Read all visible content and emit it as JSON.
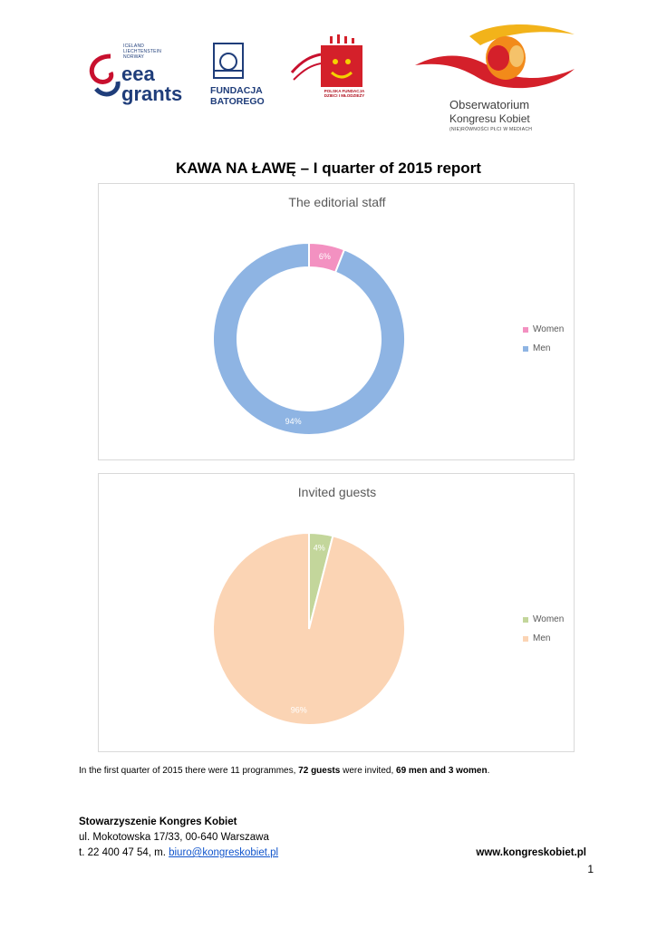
{
  "header": {
    "eea": {
      "lines": [
        "ICELAND",
        "LIECHTENSTEIN",
        "NORWAY"
      ],
      "word1": "eea",
      "word2": "grants"
    },
    "batory": {
      "line1": "FUNDACJA",
      "line2": "BATOREGO"
    },
    "pfdn": {
      "line1": "POLSKA FUNDACJA",
      "line2": "DZIECI I MŁODZIEŻY"
    },
    "okk": {
      "line1": "Obserwatorium",
      "line2": "Kongresu Kobiet",
      "line3": "(NIE)RÓWNOŚCI PŁCI W MEDIACH"
    }
  },
  "title": "KAWA NA ŁAWĘ – I quarter of 2015 report",
  "chart_data": [
    {
      "type": "pie",
      "variant": "doughnut",
      "title": "The editorial staff",
      "categories": [
        "Women",
        "Men"
      ],
      "values": [
        6,
        94
      ],
      "labels": [
        "6%",
        "94%"
      ],
      "colors": [
        "#f391c1",
        "#8eb4e3"
      ],
      "legend": "right"
    },
    {
      "type": "pie",
      "title": "Invited guests",
      "categories": [
        "Women",
        "Men"
      ],
      "values": [
        4,
        96
      ],
      "labels": [
        "4%",
        "96%"
      ],
      "colors": [
        "#c3d69b",
        "#fbd4b4"
      ],
      "legend": "right"
    }
  ],
  "summary": {
    "part1": "In the first quarter of 2015 there were 11 programmes, ",
    "bold1": "72 guests",
    "part2": " were invited, ",
    "bold2": "69 men and 3 women",
    "part3": "."
  },
  "footer": {
    "org": "Stowarzyszenie Kongres Kobiet",
    "address": "ul. Mokotowska 17/33, 00-640 Warszawa",
    "phone_prefix": "t. 22 400 47 54, m. ",
    "email": "biuro@kongreskobiet.pl",
    "website": "www.kongreskobiet.pl"
  },
  "page_number": "1"
}
